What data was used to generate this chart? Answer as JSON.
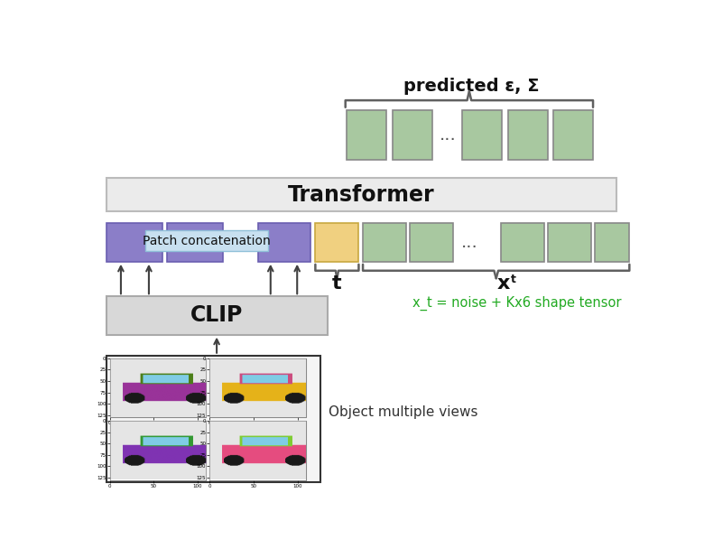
{
  "title": "predicted ε, Σ",
  "transformer_label": "Transformer",
  "clip_label": "CLIP",
  "patch_concat_label": "Patch concatenation",
  "t_label": "t",
  "xt_label": "x",
  "xt_sub": "t",
  "green_annotation": "x_t = noise + Kx6 shape tensor",
  "object_views_label": "Object multiple views",
  "bg_color": "#ffffff",
  "green_color": "#22aa22",
  "purple_color": "#8B7EC8",
  "green_box_color": "#a8c8a0",
  "yellow_box_color": "#f0d080",
  "transformer_bg": "#ebebeb",
  "clip_bg": "#d8d8d8",
  "patch_bg": "#c8e0f0",
  "brace_color": "#606060",
  "arrow_color": "#404040",
  "box_edge": "#888888",
  "purple_edge": "#6a5eb0"
}
